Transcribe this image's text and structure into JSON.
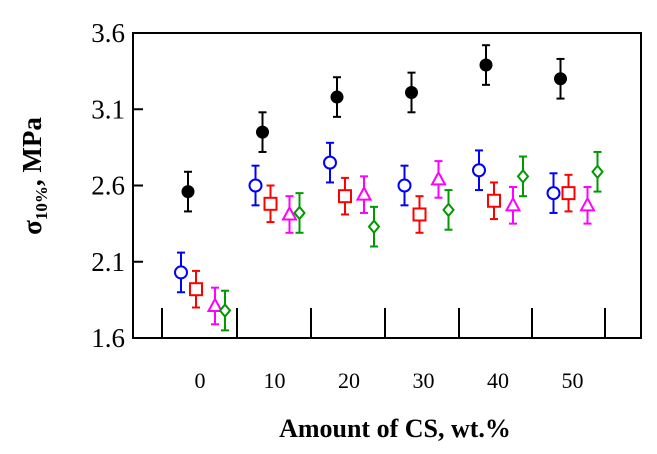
{
  "chart_data": {
    "type": "scatter",
    "title": "",
    "xlabel": "Amount of CS, wt.%",
    "ylabel": {
      "symbol": "σ",
      "subscript": "10%",
      "suffix": ", MPa"
    },
    "categories": [
      "0",
      "10",
      "20",
      "30",
      "40",
      "50"
    ],
    "ylim": [
      1.6,
      3.6
    ],
    "yticks": [
      "1.6",
      "2.1",
      "2.6",
      "3.1",
      "3.6"
    ],
    "grid": false,
    "legend": "none",
    "series": [
      {
        "name": "filled circle",
        "marker": "circle-filled",
        "color": "#000000",
        "values": [
          2.56,
          2.95,
          3.18,
          3.21,
          3.39,
          3.3
        ],
        "errors": [
          0.13,
          0.13,
          0.13,
          0.13,
          0.13,
          0.13
        ]
      },
      {
        "name": "open circle",
        "marker": "circle-open",
        "color": "#0000ff",
        "values": [
          2.03,
          2.6,
          2.75,
          2.6,
          2.7,
          2.55
        ],
        "errors": [
          0.13,
          0.13,
          0.13,
          0.13,
          0.13,
          0.13
        ]
      },
      {
        "name": "open square",
        "marker": "square-open",
        "color": "#ff0000",
        "values": [
          1.92,
          2.48,
          2.53,
          2.41,
          2.5,
          2.55
        ],
        "errors": [
          0.12,
          0.12,
          0.12,
          0.12,
          0.12,
          0.12
        ]
      },
      {
        "name": "open triangle",
        "marker": "triangle-open",
        "color": "#ff00ff",
        "values": [
          1.81,
          2.41,
          2.54,
          2.64,
          2.47,
          2.47
        ],
        "errors": [
          0.12,
          0.12,
          0.12,
          0.12,
          0.12,
          0.12
        ]
      },
      {
        "name": "open diamond",
        "marker": "diamond-open",
        "color": "#009900",
        "values": [
          1.78,
          2.42,
          2.33,
          2.44,
          2.66,
          2.69
        ],
        "errors": [
          0.13,
          0.13,
          0.13,
          0.13,
          0.13,
          0.13
        ]
      }
    ]
  }
}
